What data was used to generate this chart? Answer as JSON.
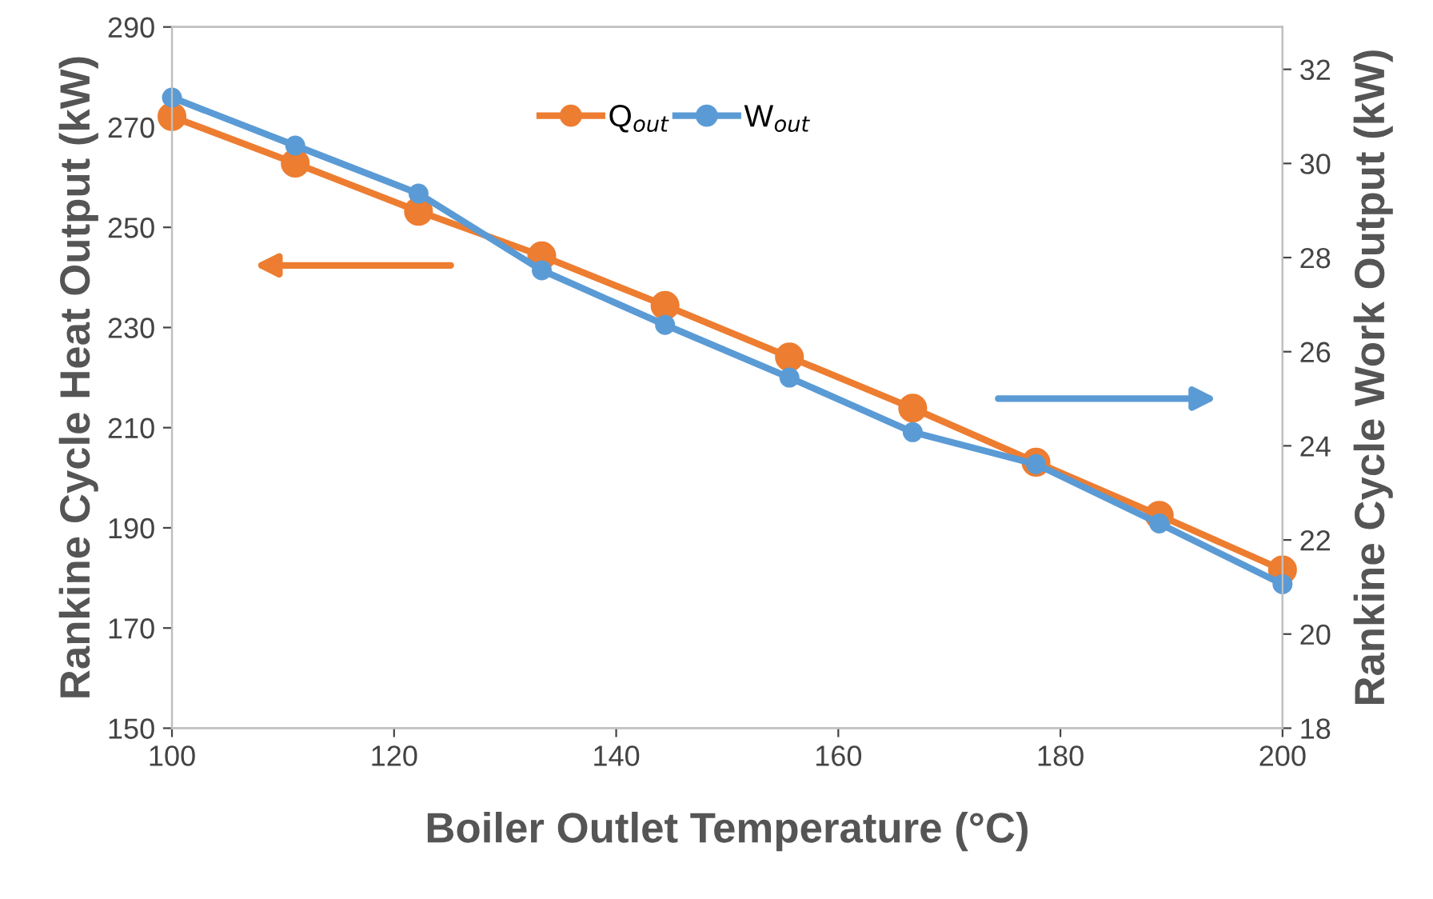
{
  "chart_data": {
    "type": "line",
    "xlabel": "Boiler Outlet Temperature (°C)",
    "ylabel": "Rankine Cycle Heat Output (kW)",
    "y2label": "Rankine Cycle Work Output (kW)",
    "x": [
      100,
      111.1,
      122.2,
      133.3,
      144.4,
      155.6,
      166.7,
      177.8,
      188.9,
      200
    ],
    "series": [
      {
        "name": "Q$_{out}$",
        "color": "#ed7d31",
        "values": [
          272.1,
          262.8,
          253.2,
          244.3,
          234.4,
          224.1,
          213.9,
          203.1,
          192.5,
          181.6
        ]
      },
      {
        "name": "W$_{out}$",
        "color": "#5b9bd5",
        "axis": "y2",
        "values": [
          31.4,
          30.38,
          29.36,
          27.73,
          26.57,
          25.45,
          24.29,
          23.61,
          22.35,
          21.06
        ]
      }
    ],
    "xlim": [
      100,
      200
    ],
    "xticks": [
      100,
      120,
      140,
      160,
      180,
      200
    ],
    "ylim": [
      150,
      290
    ],
    "yticks": [
      150,
      170,
      190,
      210,
      230,
      250,
      270,
      290
    ],
    "y2lim": [
      18,
      32.9
    ],
    "y2ticks": [
      18,
      20,
      22,
      24,
      26,
      28,
      30,
      32
    ],
    "marker": "circle",
    "line_style": "solid",
    "grid": false,
    "legend": "top right"
  }
}
